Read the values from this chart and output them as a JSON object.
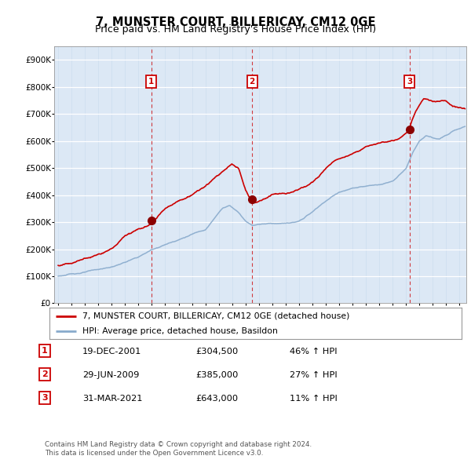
{
  "title": "7, MUNSTER COURT, BILLERICAY, CM12 0GE",
  "subtitle": "Price paid vs. HM Land Registry's House Price Index (HPI)",
  "ylabel_ticks": [
    "£0",
    "£100K",
    "£200K",
    "£300K",
    "£400K",
    "£500K",
    "£600K",
    "£700K",
    "£800K",
    "£900K"
  ],
  "ytick_vals": [
    0,
    100000,
    200000,
    300000,
    400000,
    500000,
    600000,
    700000,
    800000,
    900000
  ],
  "ylim": [
    0,
    950000
  ],
  "xlim_start": 1994.7,
  "xlim_end": 2025.5,
  "sale_dates": [
    2001.97,
    2009.49,
    2021.25
  ],
  "sale_prices": [
    304500,
    385000,
    643000
  ],
  "sale_labels": [
    "1",
    "2",
    "3"
  ],
  "vline_color": "#cc0000",
  "sale_marker_color": "#8b0000",
  "red_line_color": "#cc0000",
  "blue_line_color": "#88aacc",
  "chart_bg": "#dce8f5",
  "legend_line1": "7, MUNSTER COURT, BILLERICAY, CM12 0GE (detached house)",
  "legend_line2": "HPI: Average price, detached house, Basildon",
  "table_rows": [
    [
      "1",
      "19-DEC-2001",
      "£304,500",
      "46% ↑ HPI"
    ],
    [
      "2",
      "29-JUN-2009",
      "£385,000",
      "27% ↑ HPI"
    ],
    [
      "3",
      "31-MAR-2021",
      "£643,000",
      "11% ↑ HPI"
    ]
  ],
  "footnote": "Contains HM Land Registry data © Crown copyright and database right 2024.\nThis data is licensed under the Open Government Licence v3.0.",
  "title_fontsize": 10.5,
  "subtitle_fontsize": 9
}
